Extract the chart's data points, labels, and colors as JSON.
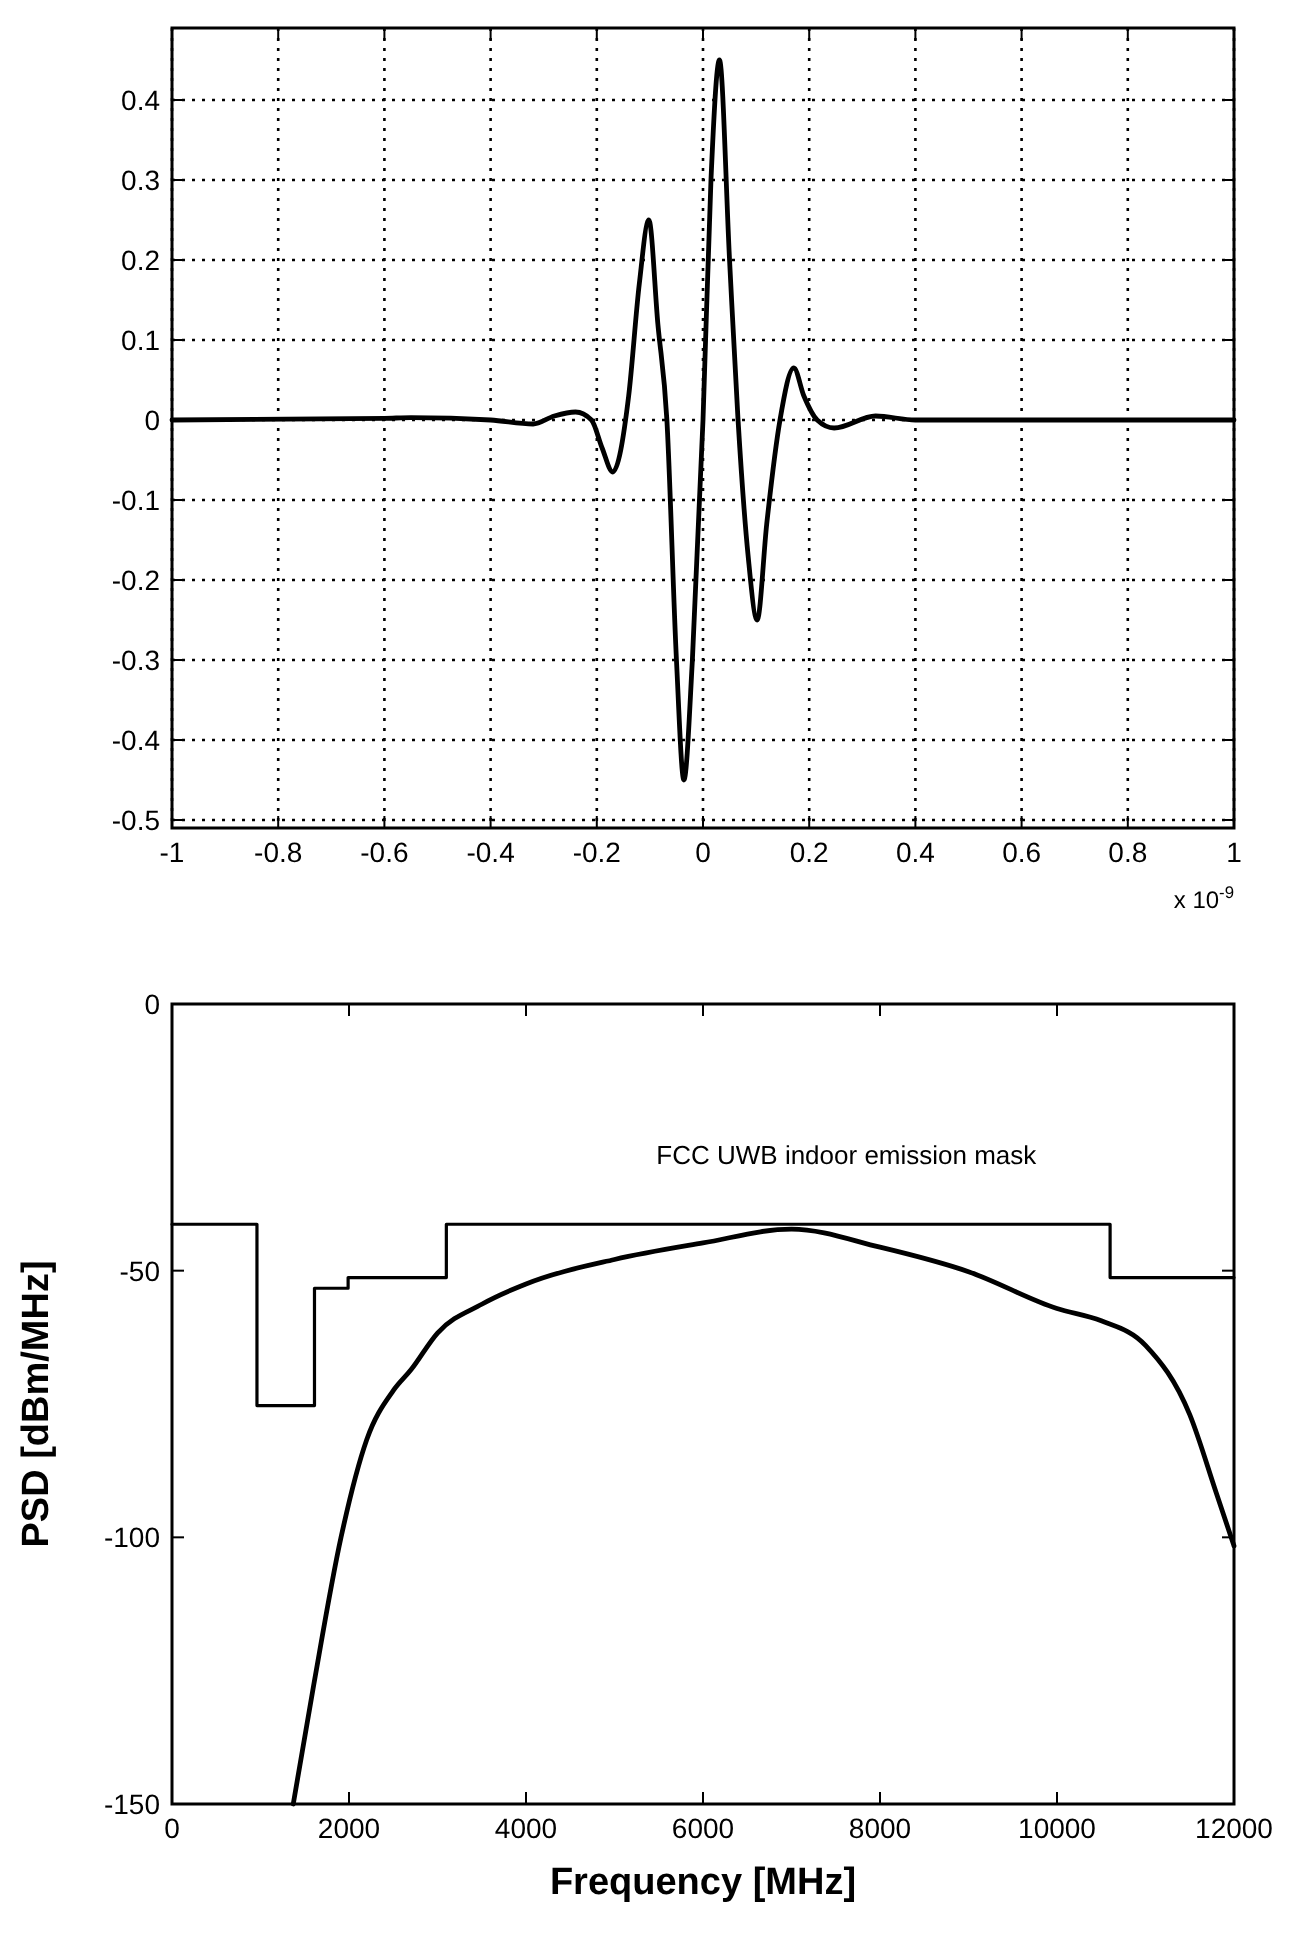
{
  "chart_data": [
    {
      "type": "line",
      "xlim": [
        -1,
        1
      ],
      "ylim": [
        -0.51,
        0.49
      ],
      "xticks": [
        -1,
        -0.8,
        -0.6,
        -0.4,
        -0.2,
        0,
        0.2,
        0.4,
        0.6,
        0.8,
        1
      ],
      "yticks": [
        -0.5,
        -0.4,
        -0.3,
        -0.2,
        -0.1,
        0,
        0.1,
        0.2,
        0.3,
        0.4
      ],
      "grid": true,
      "annotations": [
        "x 10$^{-9}$"
      ],
      "series": [
        {
          "color": "#000000",
          "x": [
            -1,
            -0.6,
            -0.55,
            -0.4,
            -0.32,
            -0.28,
            -0.24,
            -0.21,
            -0.19,
            -0.17,
            -0.14,
            -0.12,
            -0.102,
            -0.085,
            -0.068,
            -0.05,
            -0.036,
            -0.02,
            0,
            0.015,
            0.031,
            0.05,
            0.066,
            0.085,
            0.102,
            0.12,
            0.145,
            0.171,
            0.19,
            0.215,
            0.247,
            0.325,
            0.4,
            0.6,
            1
          ],
          "values": [
            0,
            0.002,
            0.003,
            0,
            -0.005,
            0.005,
            0.01,
            0,
            -0.035,
            -0.065,
            0.03,
            0.17,
            0.25,
            0.12,
            0,
            -0.3,
            -0.45,
            -0.3,
            0,
            0.3,
            0.45,
            0.2,
            0,
            -0.17,
            -0.25,
            -0.13,
            0,
            0.065,
            0.03,
            0,
            -0.01,
            0.005,
            0,
            0,
            0
          ]
        }
      ]
    },
    {
      "type": "line",
      "xlabel": "Frequency [MHz]",
      "ylabel": "PSD  [dBm/MHz]",
      "xlim": [
        0,
        12000
      ],
      "ylim": [
        -150,
        0
      ],
      "xticks": [
        0,
        2000,
        4000,
        6000,
        8000,
        10000,
        12000
      ],
      "yticks": [
        -150,
        -100,
        -50,
        0
      ],
      "grid": false,
      "annotations": [
        "FCC UWB indoor emission mask"
      ],
      "series": [
        {
          "type": "step",
          "color": "#000000",
          "x": [
            0,
            960,
            1610,
            1990,
            3100,
            10600,
            12000
          ],
          "values": [
            -41.3,
            -75.3,
            -53.3,
            -51.3,
            -41.3,
            -51.3,
            -51.3
          ]
        },
        {
          "type": "line",
          "color": "#000000",
          "x": [
            1370,
            1600,
            1910,
            2200,
            2500,
            2700,
            3000,
            3500,
            4000,
            5000,
            6000,
            7000,
            8000,
            9000,
            10000,
            10500,
            11000,
            11500,
            11800,
            12000
          ],
          "values": [
            -150,
            -127.8,
            -100,
            -81.7,
            -72.5,
            -68.6,
            -61.7,
            -56.3,
            -52.5,
            -47.9,
            -44.8,
            -42.2,
            -45.6,
            -50.2,
            -57.1,
            -59.4,
            -64,
            -77,
            -91.7,
            -101.6
          ]
        }
      ]
    }
  ]
}
